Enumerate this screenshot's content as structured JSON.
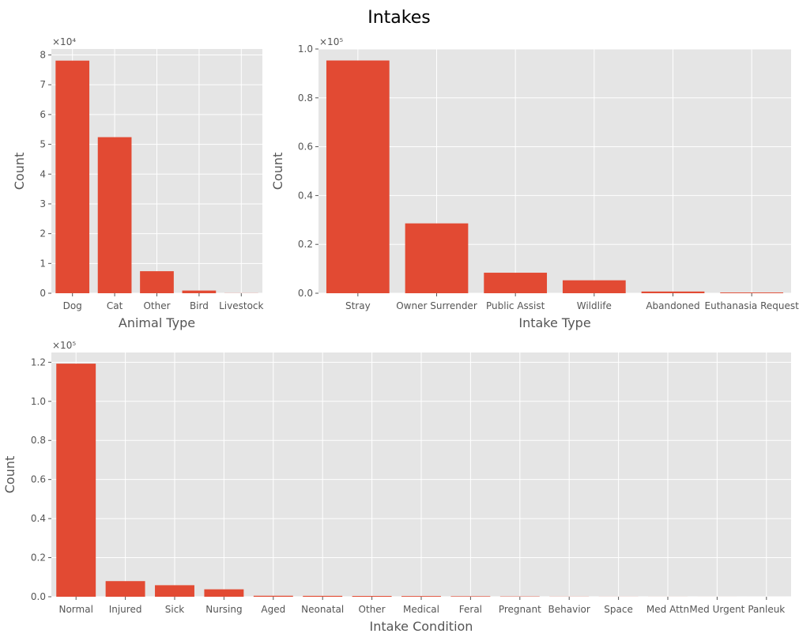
{
  "figure": {
    "title": "Intakes"
  },
  "colors": {
    "bar": "#E24A33",
    "plot_background": "#E5E5E5",
    "grid": "#FFFFFF",
    "tick_text": "#555555"
  },
  "chart_data": [
    {
      "type": "bar",
      "categories": [
        "Dog",
        "Cat",
        "Other",
        "Bird",
        "Livestock"
      ],
      "values": [
        78100,
        52400,
        7400,
        900,
        40
      ],
      "xlabel": "Animal Type",
      "ylabel": "Count",
      "ylim": [
        0,
        82000
      ],
      "yticks": [
        0,
        1,
        2,
        3,
        4,
        5,
        6,
        7,
        8
      ],
      "multiplier": "×10⁴",
      "multiplier_value": 10000,
      "grid": true
    },
    {
      "type": "bar",
      "categories": [
        "Stray",
        "Owner Surrender",
        "Public Assist",
        "Wildlife",
        "Abandoned",
        "Euthanasia Request"
      ],
      "values": [
        95300,
        28600,
        8400,
        5300,
        700,
        300
      ],
      "xlabel": "Intake Type",
      "ylabel": "Count",
      "ylim": [
        0,
        100000
      ],
      "yticks": [
        0.0,
        0.2,
        0.4,
        0.6,
        0.8,
        1.0
      ],
      "multiplier": "×10⁵",
      "multiplier_value": 100000,
      "grid": true
    },
    {
      "type": "bar",
      "categories": [
        "Normal",
        "Injured",
        "Sick",
        "Nursing",
        "Aged",
        "Neonatal",
        "Other",
        "Medical",
        "Feral",
        "Pregnant",
        "Behavior",
        "Space",
        "Med Attn",
        "Med Urgent",
        "Panleuk"
      ],
      "values": [
        119300,
        8000,
        5900,
        3800,
        500,
        450,
        400,
        350,
        250,
        150,
        60,
        30,
        20,
        10,
        5
      ],
      "xlabel": "Intake Condition",
      "ylabel": "Count",
      "ylim": [
        0,
        125000
      ],
      "yticks": [
        0.0,
        0.2,
        0.4,
        0.6,
        0.8,
        1.0,
        1.2
      ],
      "multiplier": "×10⁵",
      "multiplier_value": 100000,
      "grid": true
    }
  ]
}
